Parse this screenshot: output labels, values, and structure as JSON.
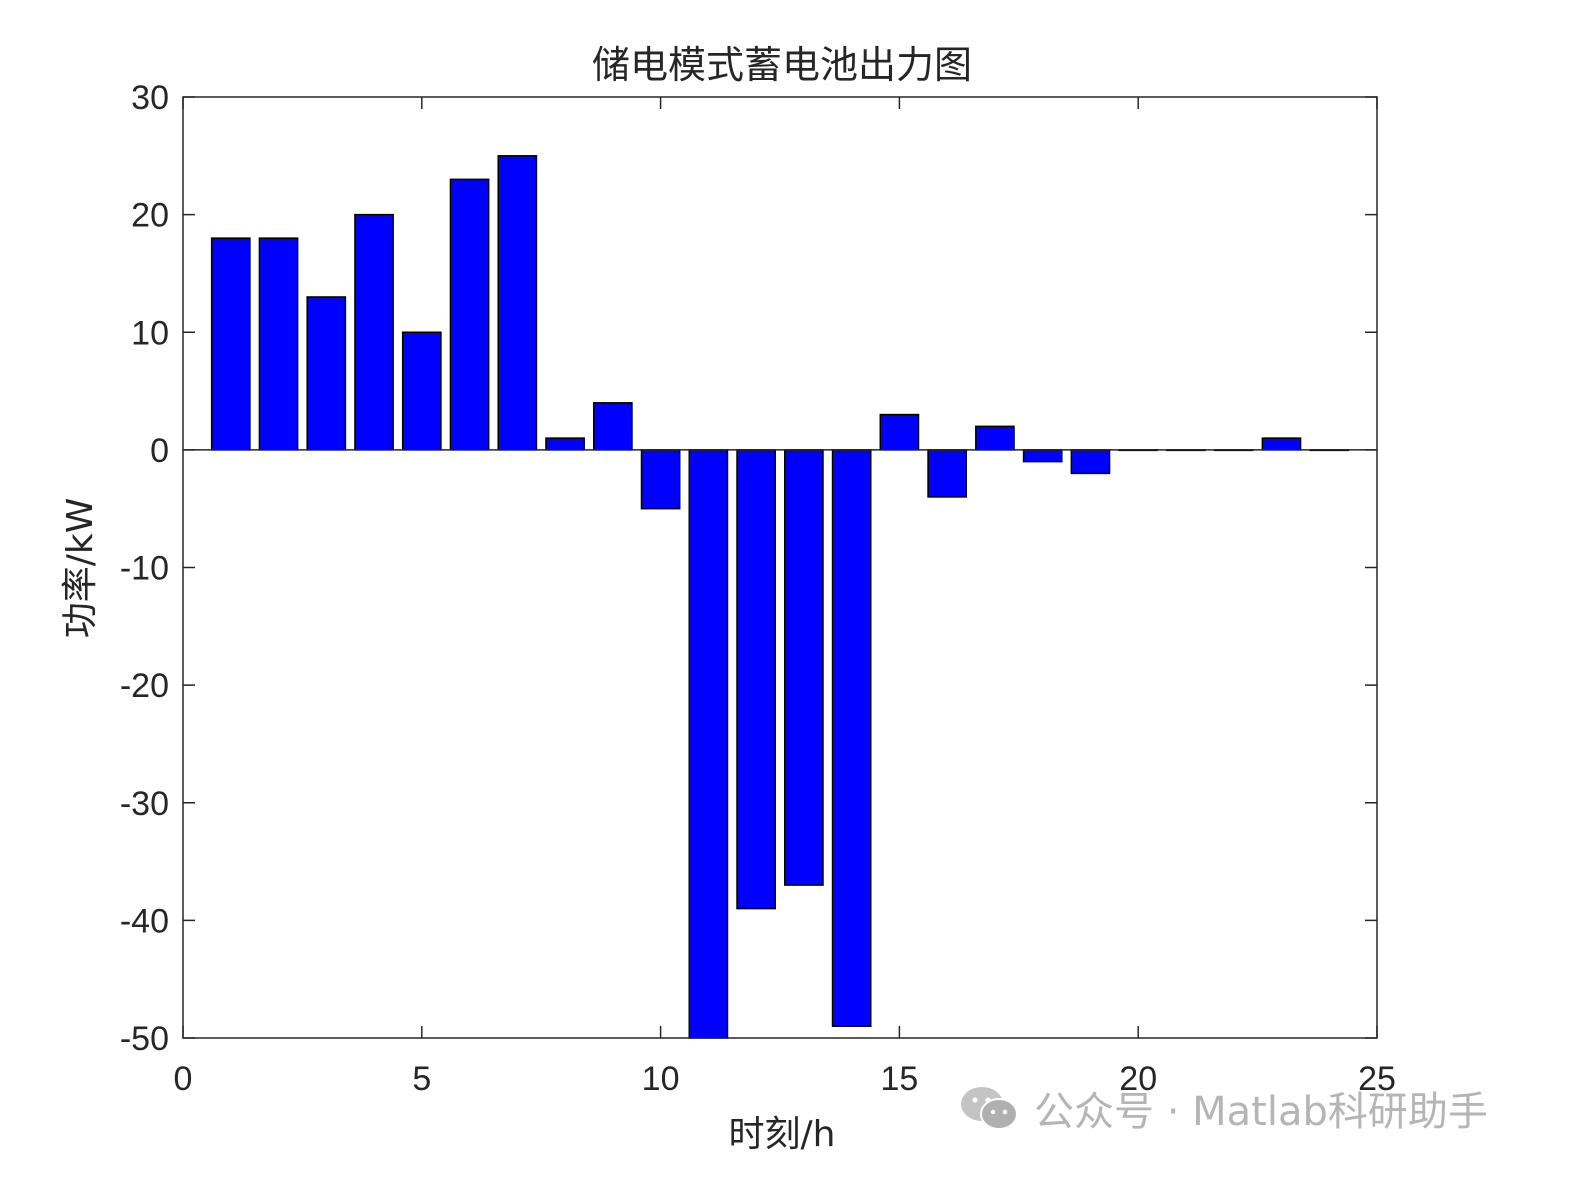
{
  "chart_data": {
    "type": "bar",
    "title": "储电模式蓄电池出力图",
    "xlabel": "时刻/h",
    "ylabel": "功率/kW",
    "x": [
      1,
      2,
      3,
      4,
      5,
      6,
      7,
      8,
      9,
      10,
      11,
      12,
      13,
      14,
      15,
      16,
      17,
      18,
      19,
      20,
      21,
      22,
      23,
      24
    ],
    "values": [
      18,
      18,
      13,
      20,
      10,
      23,
      25,
      1,
      4,
      -5,
      -50,
      -39,
      -37,
      -49,
      3,
      -4,
      2,
      -1,
      -2,
      0,
      0,
      0,
      1,
      0
    ],
    "xlim": [
      0,
      25
    ],
    "ylim": [
      -50,
      30
    ],
    "xticks": [
      "0",
      "5",
      "10",
      "15",
      "20",
      "25"
    ],
    "yticks": [
      "30",
      "20",
      "10",
      "0",
      "-10",
      "-20",
      "-30",
      "-40",
      "-50"
    ],
    "bar_color": "#0000ff",
    "edge_color": "#000000",
    "grid": false,
    "legend": "none"
  },
  "watermark": {
    "icon": "wechat-icon",
    "text": "公众号 · Matlab科研助手"
  }
}
